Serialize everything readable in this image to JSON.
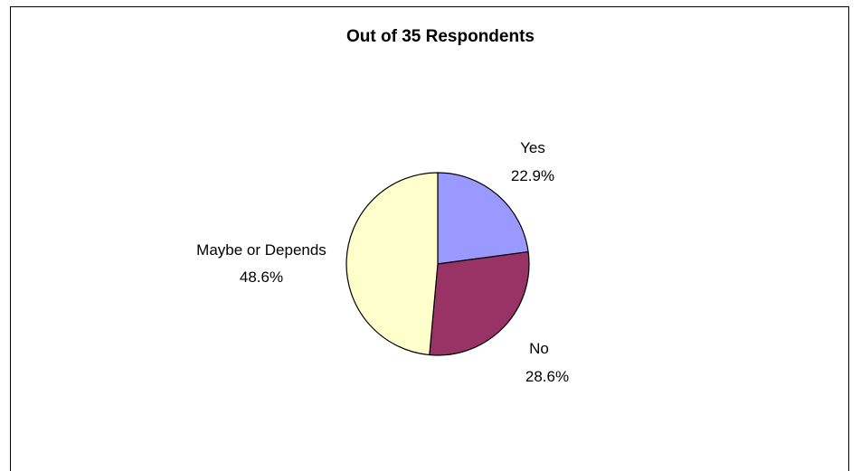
{
  "chart_data": {
    "type": "pie",
    "title": "Out of 35 Respondents",
    "slices": [
      {
        "label": "Yes",
        "value": 22.9,
        "value_label": "22.9%",
        "color": "#9999FF"
      },
      {
        "label": "No",
        "value": 28.6,
        "value_label": "28.6%",
        "color": "#993366"
      },
      {
        "label": "Maybe or Depends",
        "value": 48.6,
        "value_label": "48.6%",
        "color": "#FFFFCC"
      }
    ],
    "start_angle": "12 o'clock",
    "direction": "clockwise",
    "legend": "none"
  }
}
